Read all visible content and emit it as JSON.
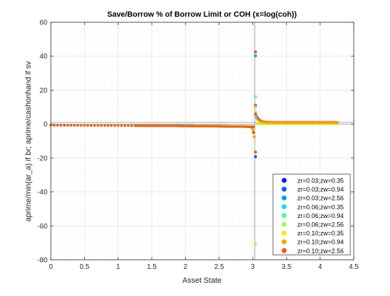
{
  "chart_data": {
    "type": "scatter",
    "title": "Save/Borrow % of Borrow Limit or COH (x=log(coh))",
    "xlabel": "Asset State",
    "ylabel": "aprime/min(ar_a) if br; aprime/cashonhand if sv",
    "xlim": [
      0,
      4.5
    ],
    "ylim": [
      -80,
      60
    ],
    "x_ticks": [
      0,
      0.5,
      1,
      1.5,
      2,
      2.5,
      3,
      3.5,
      4,
      4.5
    ],
    "y_ticks": [
      -80,
      -60,
      -40,
      -20,
      0,
      20,
      40,
      60
    ],
    "x_tick_labels": [
      "0",
      "0.5",
      "1",
      "1.5",
      "2",
      "2.5",
      "3",
      "3.5",
      "4",
      "4.5"
    ],
    "y_tick_labels": [
      "-80",
      "-60",
      "-40",
      "-20",
      "0",
      "20",
      "40",
      "60"
    ],
    "grid": true,
    "minor_grid": true,
    "legend_position": "bottom-right",
    "reference_lines": {
      "vertical_x": 3.03,
      "horizontal_y": [
        0,
        1
      ]
    },
    "series": [
      {
        "name": "zr=0.03;zw=0.35",
        "color": "#0b1fd6"
      },
      {
        "name": "zr=0.03;zw=0.94",
        "color": "#0f5ef0"
      },
      {
        "name": "zr=0.03;zw=2.56",
        "color": "#0aa2e8"
      },
      {
        "name": "zr=0.06;zw=0.35",
        "color": "#18dceb"
      },
      {
        "name": "zr=0.06;zw=0.94",
        "color": "#5cf0a5"
      },
      {
        "name": "zr=0.06;zw=2.56",
        "color": "#a8f560"
      },
      {
        "name": "zr=0.10;zw=0.35",
        "color": "#f2ea16"
      },
      {
        "name": "zr=0.10;zw=0.94",
        "color": "#fba412"
      },
      {
        "name": "zr=0.10;zw=2.56",
        "color": "#f0581c"
      }
    ],
    "spike_points": [
      {
        "x": 3.04,
        "y": 42.5,
        "series": 8
      },
      {
        "x": 3.04,
        "y": 40.2,
        "series": 2
      },
      {
        "x": 3.04,
        "y": 16.2,
        "series": 4
      },
      {
        "x": 3.04,
        "y": 11.0,
        "series": 1
      },
      {
        "x": 3.04,
        "y": 10.4,
        "series": 7
      },
      {
        "x": 3.04,
        "y": 7.0,
        "series": 5
      },
      {
        "x": 3.04,
        "y": 6.0,
        "series": 8
      },
      {
        "x": 3.05,
        "y": 4.2,
        "series": 3
      },
      {
        "x": 3.04,
        "y": -16.5,
        "series": 8
      },
      {
        "x": 3.04,
        "y": -19.2,
        "series": 1
      },
      {
        "x": 3.04,
        "y": -70.8,
        "series": 5
      }
    ],
    "negative_branch": {
      "x_range": [
        0,
        3.02
      ],
      "y_start": -0.6,
      "y_mid": -0.9,
      "y_end": -1.5,
      "sparse_until_x": 1.25,
      "sparse_step": 0.05
    },
    "positive_branch": {
      "x_range": [
        3.06,
        4.27
      ],
      "y_level": 1.0,
      "y_level_low": 0.1
    }
  }
}
